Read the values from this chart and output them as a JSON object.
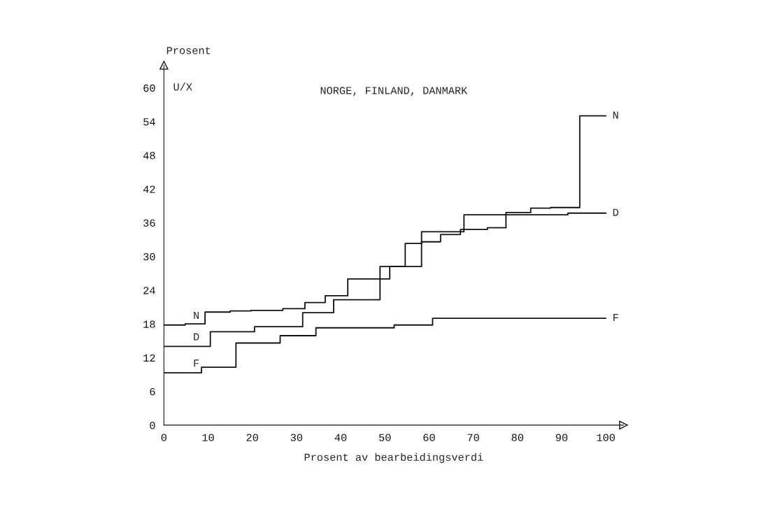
{
  "chart_data": {
    "type": "step",
    "title": "NORGE, FINLAND, DANMARK",
    "xlabel": "Prosent av bearbeidingsverdi",
    "ylabel": "Prosent",
    "annotations": [
      "U/X"
    ],
    "series": [
      {
        "name": "N",
        "color": "#111111",
        "x": [
          0,
          4.8,
          9.3,
          15,
          19.7,
          26.9,
          31.9,
          36.5,
          41.6,
          51.1,
          54.6,
          58.3,
          67.9,
          77.4,
          83.0,
          87.5,
          94.1,
          100
        ],
        "values": [
          17.8,
          18.0,
          20.1,
          20.3,
          20.4,
          20.7,
          21.8,
          23.0,
          26.0,
          28.2,
          32.3,
          34.4,
          37.4,
          37.8,
          38.6,
          38.7,
          55,
          55
        ]
      },
      {
        "name": "D",
        "color": "#111111",
        "x": [
          0,
          10.5,
          20.5,
          31.4,
          38.4,
          48.9,
          58.3,
          62.6,
          67.1,
          73.2,
          77.4,
          91.4,
          100
        ],
        "values": [
          14.0,
          16.6,
          17.5,
          20.0,
          22.3,
          28.2,
          32.6,
          33.9,
          34.8,
          35.1,
          37.4,
          37.7,
          37.7
        ]
      },
      {
        "name": "F",
        "color": "#111111",
        "x": [
          0,
          8.5,
          16.3,
          26.3,
          34.4,
          52.1,
          60.8,
          100
        ],
        "values": [
          9.3,
          10.3,
          14.6,
          15.9,
          17.3,
          17.8,
          19.0,
          19.0
        ]
      }
    ],
    "xlim": [
      0,
      104
    ],
    "xticks": [
      0,
      10,
      20,
      30,
      40,
      50,
      60,
      70,
      80,
      90,
      100
    ],
    "ylim": [
      0,
      64
    ],
    "yticks": [
      0,
      6,
      12,
      18,
      24,
      30,
      36,
      42,
      48,
      54,
      60
    ],
    "grid": false,
    "legend": false
  }
}
